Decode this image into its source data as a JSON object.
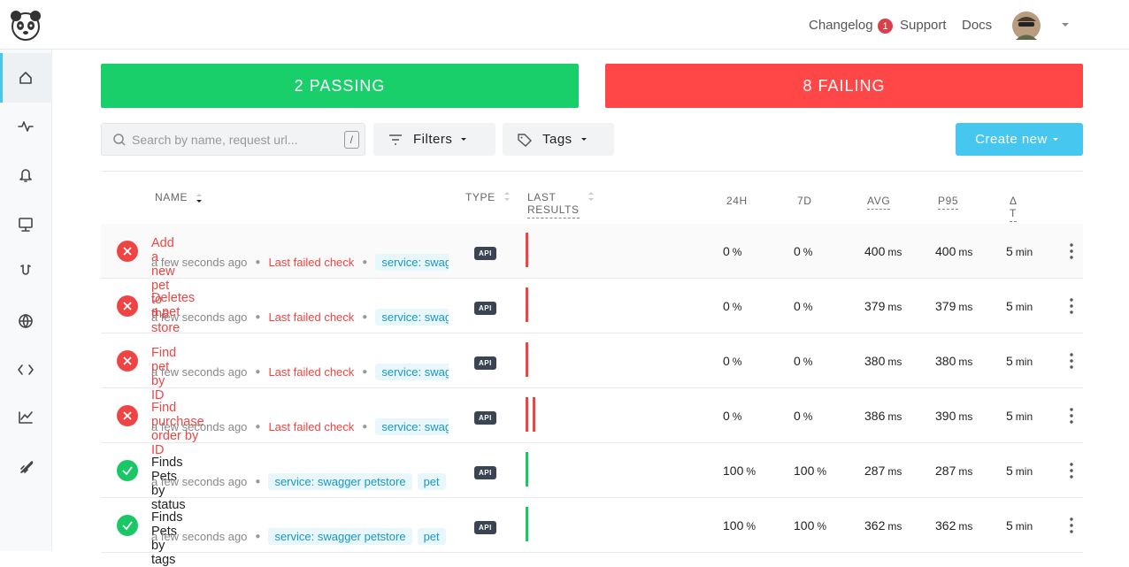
{
  "nav": {
    "links": [
      "Changelog",
      "Support",
      "Docs"
    ],
    "changelog_badge": "1"
  },
  "summary": {
    "passing": "2 PASSING",
    "failing": "8 FAILING"
  },
  "toolbar": {
    "search_placeholder": "Search by name, request url...",
    "search_shortcut": "/",
    "filters": "Filters",
    "tags": "Tags",
    "create": "Create new"
  },
  "table": {
    "headers": [
      "NAME",
      "TYPE",
      "LAST RESULTS",
      "24H",
      "7D",
      "AVG",
      "P95",
      "Δ T"
    ],
    "units": {
      "pct": "%",
      "ms": "ms",
      "min": "min"
    },
    "rows": [
      {
        "name": "Add a new pet to the store",
        "status": "failing",
        "time": "a few seconds ago",
        "note": "Last failed check",
        "tags": [
          "service: swagger petstore"
        ],
        "type": "API",
        "results": [
          "fail"
        ],
        "h24": 0,
        "d7": 0,
        "avg": 400,
        "p95": 400,
        "delta": 5
      },
      {
        "name": "Deletes a pet",
        "status": "failing",
        "time": "a few seconds ago",
        "note": "Last failed check",
        "tags": [
          "service: swagger petstore"
        ],
        "type": "API",
        "results": [
          "fail"
        ],
        "h24": 0,
        "d7": 0,
        "avg": 379,
        "p95": 379,
        "delta": 5
      },
      {
        "name": "Find pet by ID",
        "status": "failing",
        "time": "a few seconds ago",
        "note": "Last failed check",
        "tags": [
          "service: swagger petstore"
        ],
        "type": "API",
        "results": [
          "fail"
        ],
        "h24": 0,
        "d7": 0,
        "avg": 380,
        "p95": 380,
        "delta": 5
      },
      {
        "name": "Find purchase order by ID",
        "status": "failing",
        "time": "a few seconds ago",
        "note": "Last failed check",
        "tags": [
          "service: swagger petstore"
        ],
        "type": "API",
        "results": [
          "fail",
          "fail"
        ],
        "h24": 0,
        "d7": 0,
        "avg": 386,
        "p95": 390,
        "delta": 5
      },
      {
        "name": "Finds Pets by status",
        "status": "passing",
        "time": "a few seconds ago",
        "tags": [
          "service: swagger petstore",
          "pet"
        ],
        "type": "API",
        "results": [
          "pass"
        ],
        "h24": 100,
        "d7": 100,
        "avg": 287,
        "p95": 287,
        "delta": 5
      },
      {
        "name": "Finds Pets by tags",
        "status": "passing",
        "time": "a few seconds ago",
        "tags": [
          "service: swagger petstore",
          "pet"
        ],
        "type": "API",
        "results": [
          "pass"
        ],
        "h24": 100,
        "d7": 100,
        "avg": 362,
        "p95": 362,
        "delta": 5
      }
    ]
  }
}
